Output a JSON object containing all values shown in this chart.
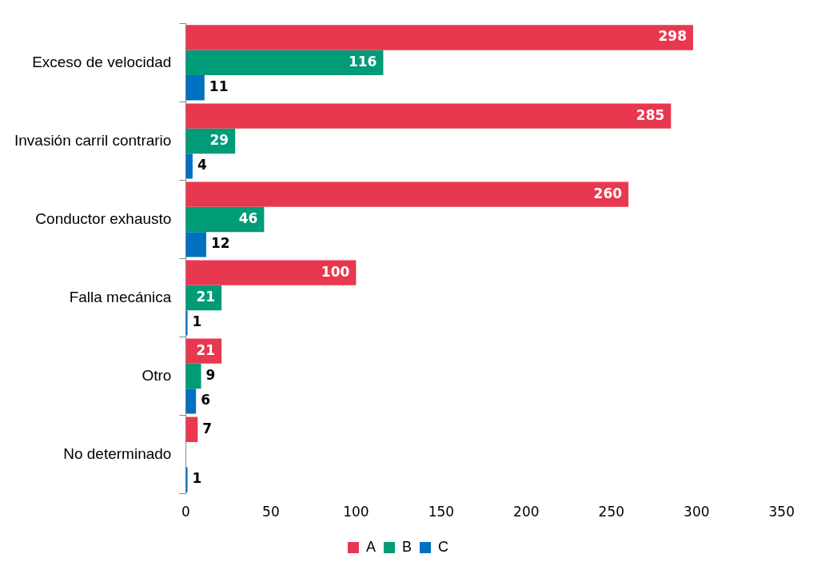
{
  "chart_data": {
    "type": "bar",
    "orientation": "horizontal",
    "categories": [
      "Exceso de velocidad",
      "Invasión carril contrario",
      "Conductor exhausto",
      "Falla mecánica",
      "Otro",
      "No determinado"
    ],
    "series": [
      {
        "name": "A",
        "color": "#e8384f",
        "values": [
          298,
          285,
          260,
          100,
          21,
          7
        ]
      },
      {
        "name": "B",
        "color": "#009b77",
        "values": [
          116,
          29,
          46,
          21,
          9,
          null
        ]
      },
      {
        "name": "C",
        "color": "#0070c0",
        "values": [
          11,
          4,
          12,
          1,
          6,
          1
        ]
      }
    ],
    "xlim": [
      0,
      350
    ],
    "xticks": [
      0,
      50,
      100,
      150,
      200,
      250,
      300,
      350
    ],
    "grid": false,
    "legend": "bottom",
    "data_labels": true
  }
}
